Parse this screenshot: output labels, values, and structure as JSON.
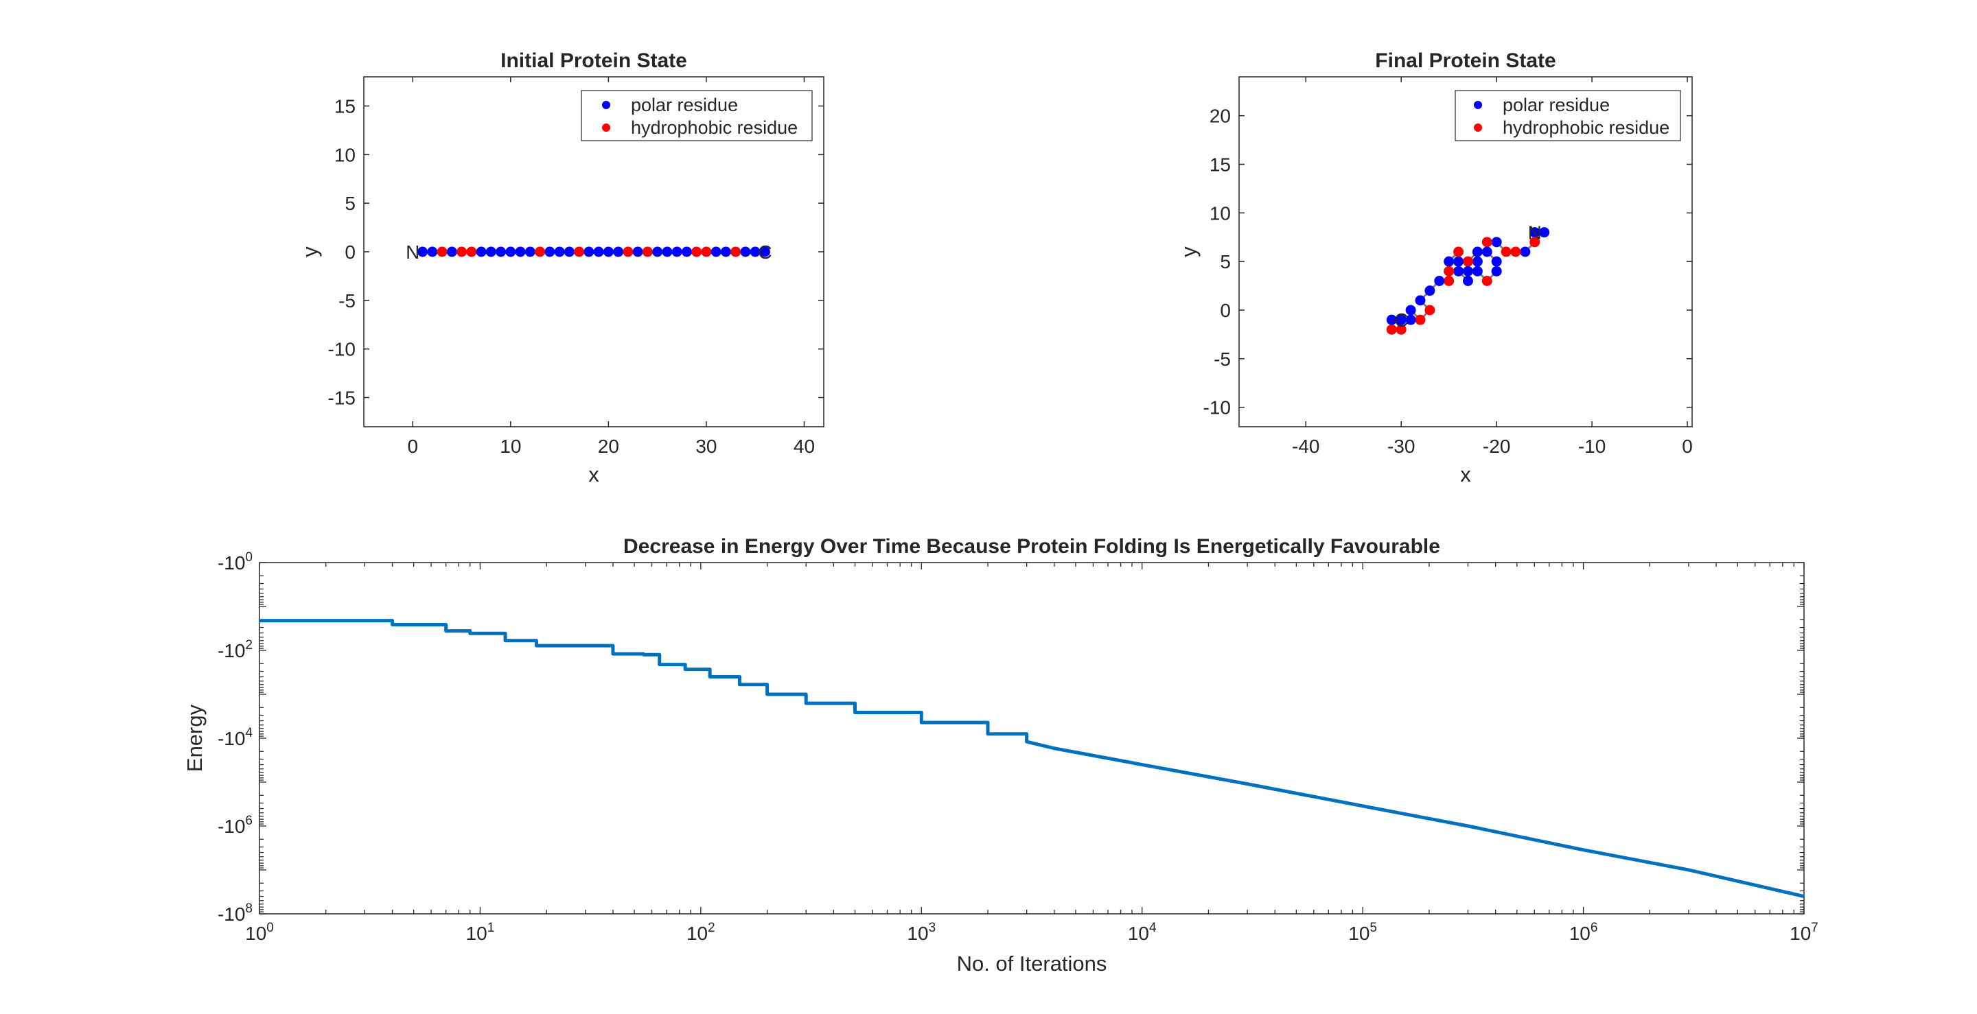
{
  "figure": {
    "background": "#ffffff",
    "axis_color": "#262626"
  },
  "chart_data": [
    {
      "id": "initial",
      "type": "scatter",
      "title": "Initial Protein State",
      "xlabel": "x",
      "ylabel": "y",
      "xlim": [
        -5,
        42
      ],
      "ylim": [
        -18,
        18
      ],
      "xticks": [
        0,
        10,
        20,
        30,
        40
      ],
      "yticks": [
        -15,
        -10,
        -5,
        0,
        5,
        10,
        15
      ],
      "legend": {
        "position": "top-right",
        "entries": [
          {
            "label": "polar residue",
            "color": "#0000ff"
          },
          {
            "label": "hydrophobic residue",
            "color": "#ff0000"
          }
        ]
      },
      "chain_color": "#7f7f7f",
      "end_labels": [
        {
          "text": "N",
          "x": 0,
          "y": 0
        },
        {
          "text": "C",
          "x": 36,
          "y": 0
        }
      ],
      "residues": [
        {
          "x": 1,
          "y": 0,
          "type": "polar"
        },
        {
          "x": 2,
          "y": 0,
          "type": "polar"
        },
        {
          "x": 3,
          "y": 0,
          "type": "hydrophobic"
        },
        {
          "x": 4,
          "y": 0,
          "type": "polar"
        },
        {
          "x": 5,
          "y": 0,
          "type": "hydrophobic"
        },
        {
          "x": 6,
          "y": 0,
          "type": "hydrophobic"
        },
        {
          "x": 7,
          "y": 0,
          "type": "polar"
        },
        {
          "x": 8,
          "y": 0,
          "type": "polar"
        },
        {
          "x": 9,
          "y": 0,
          "type": "polar"
        },
        {
          "x": 10,
          "y": 0,
          "type": "polar"
        },
        {
          "x": 11,
          "y": 0,
          "type": "polar"
        },
        {
          "x": 12,
          "y": 0,
          "type": "polar"
        },
        {
          "x": 13,
          "y": 0,
          "type": "hydrophobic"
        },
        {
          "x": 14,
          "y": 0,
          "type": "polar"
        },
        {
          "x": 15,
          "y": 0,
          "type": "polar"
        },
        {
          "x": 16,
          "y": 0,
          "type": "polar"
        },
        {
          "x": 17,
          "y": 0,
          "type": "hydrophobic"
        },
        {
          "x": 18,
          "y": 0,
          "type": "polar"
        },
        {
          "x": 19,
          "y": 0,
          "type": "polar"
        },
        {
          "x": 20,
          "y": 0,
          "type": "polar"
        },
        {
          "x": 21,
          "y": 0,
          "type": "polar"
        },
        {
          "x": 22,
          "y": 0,
          "type": "hydrophobic"
        },
        {
          "x": 23,
          "y": 0,
          "type": "polar"
        },
        {
          "x": 24,
          "y": 0,
          "type": "hydrophobic"
        },
        {
          "x": 25,
          "y": 0,
          "type": "polar"
        },
        {
          "x": 26,
          "y": 0,
          "type": "polar"
        },
        {
          "x": 27,
          "y": 0,
          "type": "polar"
        },
        {
          "x": 28,
          "y": 0,
          "type": "polar"
        },
        {
          "x": 29,
          "y": 0,
          "type": "hydrophobic"
        },
        {
          "x": 30,
          "y": 0,
          "type": "hydrophobic"
        },
        {
          "x": 31,
          "y": 0,
          "type": "polar"
        },
        {
          "x": 32,
          "y": 0,
          "type": "polar"
        },
        {
          "x": 33,
          "y": 0,
          "type": "hydrophobic"
        },
        {
          "x": 34,
          "y": 0,
          "type": "polar"
        },
        {
          "x": 35,
          "y": 0,
          "type": "polar"
        },
        {
          "x": 36,
          "y": 0,
          "type": "polar"
        }
      ]
    },
    {
      "id": "final",
      "type": "scatter",
      "title": "Final Protein State",
      "xlabel": "x",
      "ylabel": "y",
      "xlim": [
        -47,
        0.5
      ],
      "ylim": [
        -12,
        24
      ],
      "xticks": [
        -40,
        -30,
        -20,
        -10,
        0
      ],
      "yticks": [
        -10,
        -5,
        0,
        5,
        10,
        15,
        20
      ],
      "legend": {
        "position": "top-right",
        "entries": [
          {
            "label": "polar residue",
            "color": "#0000ff"
          },
          {
            "label": "hydrophobic residue",
            "color": "#ff0000"
          }
        ]
      },
      "chain_color": "#7f7f7f",
      "end_labels": [
        {
          "text": "N",
          "x": -16,
          "y": 8
        },
        {
          "text": "C",
          "x": -30,
          "y": -1
        }
      ],
      "residues": [
        {
          "x": -15,
          "y": 8,
          "type": "polar"
        },
        {
          "x": -16,
          "y": 8,
          "type": "polar"
        },
        {
          "x": -16,
          "y": 7,
          "type": "hydrophobic"
        },
        {
          "x": -17,
          "y": 6,
          "type": "polar"
        },
        {
          "x": -18,
          "y": 6,
          "type": "hydrophobic"
        },
        {
          "x": -19,
          "y": 6,
          "type": "hydrophobic"
        },
        {
          "x": -20,
          "y": 7,
          "type": "polar"
        },
        {
          "x": -21,
          "y": 7,
          "type": "hydrophobic"
        },
        {
          "x": -21,
          "y": 6,
          "type": "polar"
        },
        {
          "x": -20,
          "y": 5,
          "type": "polar"
        },
        {
          "x": -20,
          "y": 4,
          "type": "polar"
        },
        {
          "x": -21,
          "y": 3,
          "type": "hydrophobic"
        },
        {
          "x": -22,
          "y": 4,
          "type": "polar"
        },
        {
          "x": -22,
          "y": 5,
          "type": "polar"
        },
        {
          "x": -22,
          "y": 6,
          "type": "polar"
        },
        {
          "x": -23,
          "y": 5,
          "type": "hydrophobic"
        },
        {
          "x": -23,
          "y": 4,
          "type": "polar"
        },
        {
          "x": -23,
          "y": 3,
          "type": "polar"
        },
        {
          "x": -24,
          "y": 4,
          "type": "polar"
        },
        {
          "x": -24,
          "y": 5,
          "type": "polar"
        },
        {
          "x": -24,
          "y": 6,
          "type": "hydrophobic"
        },
        {
          "x": -25,
          "y": 5,
          "type": "polar"
        },
        {
          "x": -25,
          "y": 4,
          "type": "hydrophobic"
        },
        {
          "x": -25,
          "y": 3,
          "type": "hydrophobic"
        },
        {
          "x": -26,
          "y": 3,
          "type": "polar"
        },
        {
          "x": -27,
          "y": 2,
          "type": "polar"
        },
        {
          "x": -28,
          "y": 1,
          "type": "polar"
        },
        {
          "x": -27,
          "y": 0,
          "type": "hydrophobic"
        },
        {
          "x": -28,
          "y": -1,
          "type": "hydrophobic"
        },
        {
          "x": -29,
          "y": 0,
          "type": "polar"
        },
        {
          "x": -29,
          "y": -1,
          "type": "polar"
        },
        {
          "x": -30,
          "y": -1,
          "type": "hydrophobic"
        },
        {
          "x": -30,
          "y": -2,
          "type": "hydrophobic"
        },
        {
          "x": -31,
          "y": -2,
          "type": "hydrophobic"
        },
        {
          "x": -31,
          "y": -1,
          "type": "polar"
        },
        {
          "x": -30,
          "y": -1,
          "type": "polar"
        }
      ]
    },
    {
      "id": "energy",
      "type": "line",
      "title": "Decrease in Energy Over Time Because Protein Folding Is Energetically Favourable",
      "xlabel": "No. of Iterations",
      "ylabel": "Energy",
      "x_scale": "log",
      "y_scale": "log (negative values)",
      "xlim": [
        1,
        10000000
      ],
      "ylim": [
        -100000000,
        -1
      ],
      "xtick_labels": [
        {
          "base": "10",
          "exp": "0"
        },
        {
          "base": "10",
          "exp": "1"
        },
        {
          "base": "10",
          "exp": "2"
        },
        {
          "base": "10",
          "exp": "3"
        },
        {
          "base": "10",
          "exp": "4"
        },
        {
          "base": "10",
          "exp": "5"
        },
        {
          "base": "10",
          "exp": "6"
        },
        {
          "base": "10",
          "exp": "7"
        }
      ],
      "ytick_labels": [
        {
          "base": "-10",
          "exp": "0"
        },
        {
          "base": "-10",
          "exp": "2"
        },
        {
          "base": "-10",
          "exp": "4"
        },
        {
          "base": "-10",
          "exp": "6"
        },
        {
          "base": "-10",
          "exp": "8"
        }
      ],
      "line_color": "#0072bd",
      "series": [
        {
          "points": [
            [
              1,
              -21
            ],
            [
              3,
              -21
            ],
            [
              4,
              -26
            ],
            [
              5,
              -26
            ],
            [
              7,
              -36
            ],
            [
              9,
              -41
            ],
            [
              12,
              -41
            ],
            [
              13,
              -60
            ],
            [
              18,
              -78
            ],
            [
              30,
              -78
            ],
            [
              40,
              -120
            ],
            [
              55,
              -125
            ],
            [
              65,
              -210
            ],
            [
              85,
              -270
            ],
            [
              110,
              -400
            ],
            [
              150,
              -600
            ],
            [
              200,
              -1000
            ],
            [
              300,
              -1600
            ],
            [
              500,
              -2600
            ],
            [
              1000,
              -4400
            ],
            [
              2000,
              -8000
            ],
            [
              3000,
              -12000
            ],
            [
              4000,
              -17000
            ],
            [
              10000,
              -40000
            ],
            [
              30000,
              -110000
            ],
            [
              100000,
              -350000
            ],
            [
              300000,
              -1000000
            ],
            [
              1000000,
              -3500000
            ],
            [
              3000000,
              -10000000
            ],
            [
              10000000,
              -40000000
            ]
          ]
        }
      ]
    }
  ]
}
